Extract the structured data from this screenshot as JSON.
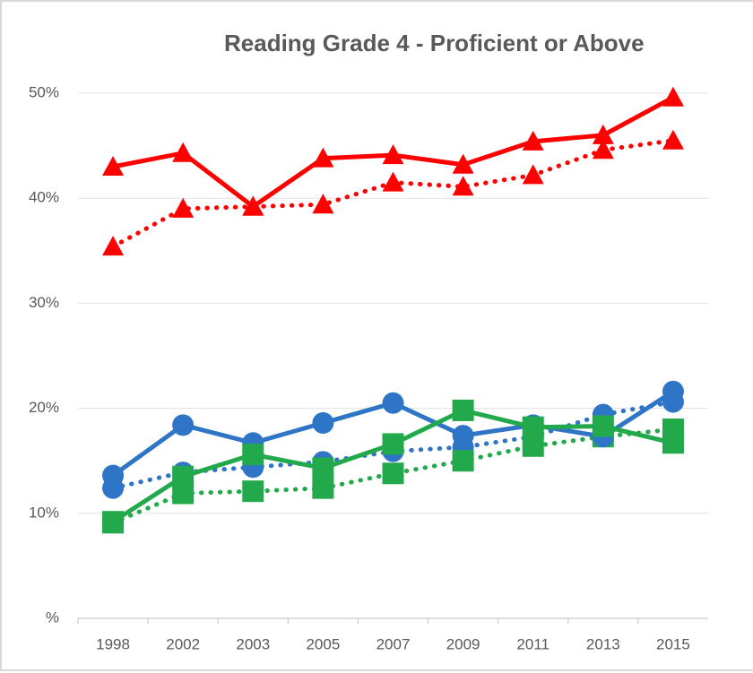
{
  "chart_data": {
    "type": "line",
    "title": "Reading Grade 4 - Proficient or Above",
    "categories": [
      "1998",
      "2002",
      "2003",
      "2005",
      "2007",
      "2009",
      "2011",
      "2013",
      "2015"
    ],
    "series": [
      {
        "color": "#ff0000",
        "style": "dotted",
        "marker": "triangle",
        "values": [
          35.4,
          39.0,
          39.2,
          39.4,
          41.5,
          41.1,
          42.2,
          44.6,
          45.5
        ]
      },
      {
        "color": "#2e75c7",
        "style": "dotted",
        "marker": "circle",
        "values": [
          12.4,
          13.9,
          14.4,
          14.9,
          15.9,
          16.3,
          17.3,
          19.4,
          20.6
        ]
      },
      {
        "color": "#22a94b",
        "style": "dotted",
        "marker": "square",
        "values": [
          9.1,
          11.9,
          12.1,
          12.4,
          13.8,
          15.0,
          16.4,
          17.3,
          18.0
        ]
      },
      {
        "color": "#ff0000",
        "style": "solid",
        "marker": "triangle",
        "values": [
          43.0,
          44.3,
          39.2,
          43.8,
          44.1,
          43.2,
          45.4,
          46.0,
          49.6
        ]
      },
      {
        "color": "#2e75c7",
        "style": "solid",
        "marker": "circle",
        "values": [
          13.6,
          18.4,
          16.7,
          18.6,
          20.5,
          17.4,
          18.4,
          17.3,
          21.6
        ]
      },
      {
        "color": "#22a94b",
        "style": "solid",
        "marker": "square",
        "values": [
          9.2,
          13.5,
          15.6,
          14.3,
          16.6,
          19.8,
          18.2,
          18.3,
          16.7
        ]
      }
    ],
    "ylim": [
      0,
      50
    ],
    "yticks": [
      {
        "value": 0,
        "label": "%"
      },
      {
        "value": 10,
        "label": "10%"
      },
      {
        "value": 20,
        "label": "20%"
      },
      {
        "value": 30,
        "label": "30%"
      },
      {
        "value": 40,
        "label": "40%"
      },
      {
        "value": 50,
        "label": "50%"
      }
    ],
    "grid": true
  }
}
